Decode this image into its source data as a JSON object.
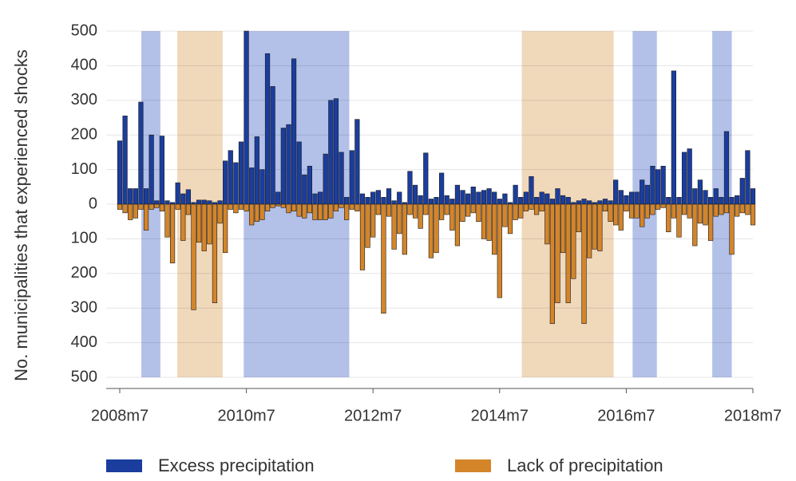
{
  "chart_data": {
    "type": "bar",
    "y_label": "No. municipalities that experienced shocks",
    "categories": [
      "2008m7",
      null,
      null,
      null,
      null,
      null,
      null,
      null,
      null,
      null,
      null,
      null,
      null,
      null,
      null,
      null,
      null,
      null,
      null,
      null,
      null,
      null,
      null,
      null,
      "2010m7",
      null,
      null,
      null,
      null,
      null,
      null,
      null,
      null,
      null,
      null,
      null,
      null,
      null,
      null,
      null,
      null,
      null,
      null,
      null,
      null,
      null,
      null,
      null,
      "2012m7",
      null,
      null,
      null,
      null,
      null,
      null,
      null,
      null,
      null,
      null,
      null,
      null,
      null,
      null,
      null,
      null,
      null,
      null,
      null,
      null,
      null,
      null,
      null,
      "2014m7",
      null,
      null,
      null,
      null,
      null,
      null,
      null,
      null,
      null,
      null,
      null,
      null,
      null,
      null,
      null,
      null,
      null,
      null,
      null,
      null,
      null,
      null,
      null,
      "2016m7",
      null,
      null,
      null,
      null,
      null,
      null,
      null,
      null,
      null,
      null,
      null,
      null,
      null,
      null,
      null,
      null,
      null,
      null,
      null,
      null,
      null,
      null,
      null,
      "2018m7"
    ],
    "series": [
      {
        "name": "Excess precipitation",
        "color": "#1a3d9e",
        "values": [
          183,
          255,
          45,
          45,
          295,
          45,
          200,
          10,
          197,
          10,
          5,
          62,
          30,
          42,
          5,
          12,
          12,
          10,
          5,
          10,
          125,
          155,
          120,
          180,
          500,
          105,
          195,
          100,
          435,
          340,
          35,
          220,
          230,
          420,
          180,
          85,
          110,
          30,
          35,
          145,
          300,
          305,
          150,
          20,
          155,
          245,
          30,
          20,
          35,
          40,
          20,
          45,
          10,
          35,
          5,
          95,
          55,
          25,
          148,
          15,
          20,
          90,
          25,
          15,
          55,
          40,
          30,
          50,
          35,
          40,
          45,
          35,
          15,
          30,
          5,
          55,
          20,
          35,
          80,
          20,
          35,
          30,
          15,
          45,
          25,
          20,
          5,
          10,
          15,
          10,
          5,
          10,
          15,
          10,
          70,
          40,
          25,
          35,
          35,
          70,
          55,
          110,
          100,
          110,
          20,
          385,
          20,
          150,
          160,
          45,
          70,
          40,
          20,
          45,
          20,
          210,
          20,
          25,
          75,
          155,
          45
        ]
      },
      {
        "name": "Lack of precipitation",
        "color": "#d4852a",
        "values": [
          -15,
          -25,
          -45,
          -40,
          -15,
          -75,
          -15,
          -10,
          -20,
          -95,
          -170,
          -15,
          -105,
          -30,
          -305,
          -110,
          -135,
          -115,
          -285,
          -55,
          -140,
          -15,
          -25,
          -15,
          -20,
          -60,
          -50,
          -45,
          -20,
          -10,
          -5,
          -10,
          -25,
          -20,
          -35,
          -40,
          -25,
          -45,
          -45,
          -45,
          -40,
          -20,
          -10,
          -45,
          -15,
          -20,
          -190,
          -125,
          -95,
          -30,
          -315,
          -35,
          -130,
          -85,
          -145,
          -30,
          -40,
          -70,
          -30,
          -155,
          -140,
          -45,
          -30,
          -75,
          -120,
          -50,
          -35,
          -25,
          -50,
          -100,
          -105,
          -145,
          -270,
          -65,
          -85,
          -45,
          -40,
          -20,
          -15,
          -30,
          -20,
          -115,
          -345,
          -285,
          -140,
          -285,
          -215,
          -80,
          -345,
          -155,
          -130,
          -135,
          -20,
          -50,
          -60,
          -75,
          -20,
          -40,
          -40,
          -65,
          -40,
          -30,
          -15,
          -10,
          -80,
          -40,
          -95,
          -30,
          -40,
          -120,
          -55,
          -60,
          -105,
          -35,
          -30,
          -25,
          -145,
          -35,
          -25,
          -30,
          -60
        ]
      }
    ],
    "shaded_periods": [
      {
        "start": 4.1,
        "end": 7.7,
        "color": "#b3c0e8"
      },
      {
        "start": 10.9,
        "end": 19.5,
        "color": "#f0d8bb"
      },
      {
        "start": 23.5,
        "end": 43.5,
        "color": "#b3c0e8"
      },
      {
        "start": 76.2,
        "end": 93.6,
        "color": "#f0d8bb"
      },
      {
        "start": 97.2,
        "end": 101.8,
        "color": "#b3c0e8"
      },
      {
        "start": 112.3,
        "end": 116,
        "color": "#b3c0e8"
      }
    ],
    "ylim": [
      -500,
      500
    ],
    "yticks": [
      {
        "value": -500,
        "label": "500"
      },
      {
        "value": -400,
        "label": "400"
      },
      {
        "value": -300,
        "label": "300"
      },
      {
        "value": -200,
        "label": "200"
      },
      {
        "value": -100,
        "label": "100"
      },
      0,
      100,
      200,
      300,
      400,
      500
    ],
    "grid": true
  }
}
